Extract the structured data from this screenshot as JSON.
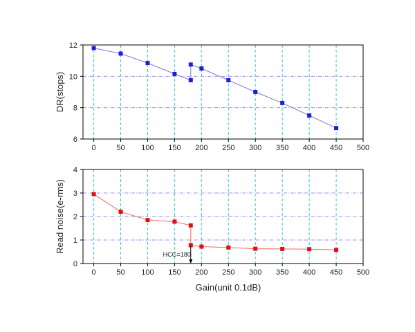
{
  "chart_data": [
    {
      "type": "line",
      "ylabel": "DR(stops)",
      "xlabel": "",
      "xlim": [
        -20,
        500
      ],
      "ylim": [
        6,
        12
      ],
      "xticks": [
        0,
        50,
        100,
        150,
        200,
        250,
        300,
        350,
        400,
        450,
        500
      ],
      "yticks": [
        6,
        8,
        10,
        12
      ],
      "grid": true,
      "x": [
        0,
        50,
        100,
        150,
        180,
        180,
        200,
        250,
        300,
        350,
        400,
        450
      ],
      "series": [
        {
          "values": [
            11.8,
            11.45,
            10.85,
            10.15,
            9.75,
            10.75,
            10.5,
            9.75,
            9.0,
            8.3,
            7.5,
            6.7
          ],
          "color": "#1f1fd6",
          "line_color": "#7c7cd8"
        }
      ]
    },
    {
      "type": "line",
      "ylabel": "Read noise(e-rms)",
      "xlabel": "Gain(unit 0.1dB)",
      "xlim": [
        -20,
        500
      ],
      "ylim": [
        0,
        4
      ],
      "xticks": [
        0,
        50,
        100,
        150,
        200,
        250,
        300,
        350,
        400,
        450,
        500
      ],
      "yticks": [
        0,
        1,
        2,
        3,
        4
      ],
      "grid": true,
      "x": [
        0,
        50,
        100,
        150,
        180,
        180,
        200,
        250,
        300,
        350,
        400,
        450
      ],
      "series": [
        {
          "values": [
            2.95,
            2.2,
            1.85,
            1.78,
            1.62,
            0.78,
            0.72,
            0.68,
            0.63,
            0.62,
            0.61,
            0.58
          ],
          "color": "#dd1111",
          "line_color": "#ee6666"
        }
      ],
      "annotation": {
        "text": "HCG=180",
        "x": 180,
        "y": 0
      }
    }
  ],
  "colors": {
    "grid_vertical": "#33c6e6",
    "grid_horizontal": "#9a8ee8",
    "axis": "#000000"
  }
}
